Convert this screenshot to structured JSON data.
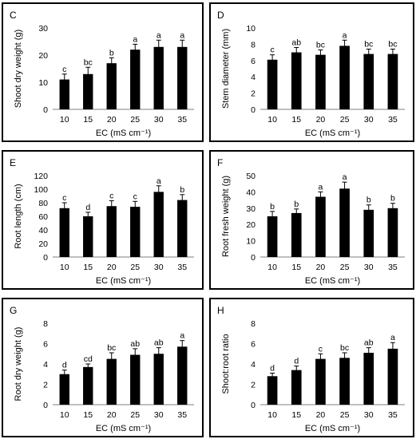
{
  "chart_data": [
    {
      "panel_label": "C",
      "type": "bar",
      "categories": [
        "10",
        "15",
        "20",
        "25",
        "30",
        "35"
      ],
      "values": [
        11,
        13,
        17,
        22,
        23,
        23
      ],
      "errors": [
        2,
        2.5,
        2,
        2,
        2.5,
        2.5
      ],
      "letters": [
        "c",
        "bc",
        "b",
        "a",
        "a",
        "a"
      ],
      "xlabel": "EC (mS cm⁻¹)",
      "ylabel": "Shoot dry weight (g)",
      "ylim": [
        0,
        30
      ],
      "yticks": [
        "0",
        "10",
        "20",
        "30"
      ],
      "grid": false,
      "bar_color": "#000000"
    },
    {
      "panel_label": "D",
      "type": "bar",
      "categories": [
        "10",
        "15",
        "20",
        "25",
        "30",
        "35"
      ],
      "values": [
        6.1,
        7.0,
        6.7,
        7.8,
        6.8,
        6.8
      ],
      "errors": [
        0.6,
        0.6,
        0.6,
        0.7,
        0.6,
        0.6
      ],
      "letters": [
        "c",
        "ab",
        "bc",
        "a",
        "bc",
        "bc"
      ],
      "xlabel": "EC (mS cm⁻¹)",
      "ylabel": "Stem diameter (mm)",
      "ylim": [
        0,
        10
      ],
      "yticks": [
        "0",
        "2",
        "4",
        "6",
        "8",
        "10"
      ],
      "grid": false,
      "bar_color": "#000000"
    },
    {
      "panel_label": "E",
      "type": "bar",
      "categories": [
        "10",
        "15",
        "20",
        "25",
        "30",
        "35"
      ],
      "values": [
        72,
        60,
        75,
        74,
        96,
        84
      ],
      "errors": [
        8,
        6,
        8,
        8,
        9,
        8
      ],
      "letters": [
        "c",
        "d",
        "c",
        "c",
        "a",
        "b"
      ],
      "xlabel": "EC (mS cm⁻¹)",
      "ylabel": "Root length (cm)",
      "ylim": [
        0,
        120
      ],
      "yticks": [
        "0",
        "20",
        "40",
        "60",
        "80",
        "100",
        "120"
      ],
      "grid": false,
      "bar_color": "#000000"
    },
    {
      "panel_label": "F",
      "type": "bar",
      "categories": [
        "10",
        "15",
        "20",
        "25",
        "30",
        "35"
      ],
      "values": [
        25,
        27,
        37,
        42,
        29,
        30
      ],
      "errors": [
        3,
        2.5,
        3,
        4,
        3,
        3
      ],
      "letters": [
        "b",
        "b",
        "a",
        "a",
        "b",
        "b"
      ],
      "xlabel": "EC (mS cm⁻¹)",
      "ylabel": "Root fresh weight (g)",
      "ylim": [
        0,
        50
      ],
      "yticks": [
        "0",
        "10",
        "20",
        "30",
        "40",
        "50"
      ],
      "grid": false,
      "bar_color": "#000000"
    },
    {
      "panel_label": "G",
      "type": "bar",
      "categories": [
        "10",
        "15",
        "20",
        "25",
        "30",
        "35"
      ],
      "values": [
        3.0,
        3.7,
        4.5,
        4.9,
        5.0,
        5.7
      ],
      "errors": [
        0.4,
        0.3,
        0.6,
        0.6,
        0.6,
        0.6
      ],
      "letters": [
        "d",
        "cd",
        "bc",
        "ab",
        "ab",
        "a"
      ],
      "xlabel": "EC (mS cm⁻¹)",
      "ylabel": "Root dry weight (g)",
      "ylim": [
        0,
        8
      ],
      "yticks": [
        "0",
        "2",
        "4",
        "6",
        "8"
      ],
      "grid": false,
      "bar_color": "#000000"
    },
    {
      "panel_label": "H",
      "type": "bar",
      "categories": [
        "10",
        "15",
        "20",
        "25",
        "30",
        "35"
      ],
      "values": [
        2.8,
        3.4,
        4.5,
        4.6,
        5.1,
        5.5
      ],
      "errors": [
        0.3,
        0.4,
        0.5,
        0.5,
        0.5,
        0.6
      ],
      "letters": [
        "d",
        "d",
        "c",
        "bc",
        "ab",
        "a"
      ],
      "xlabel": "EC (mS cm⁻¹)",
      "ylabel": "Shoot:root ratio",
      "ylim": [
        0,
        8
      ],
      "yticks": [
        "0",
        "2",
        "4",
        "6",
        "8"
      ],
      "grid": false,
      "bar_color": "#000000"
    }
  ]
}
